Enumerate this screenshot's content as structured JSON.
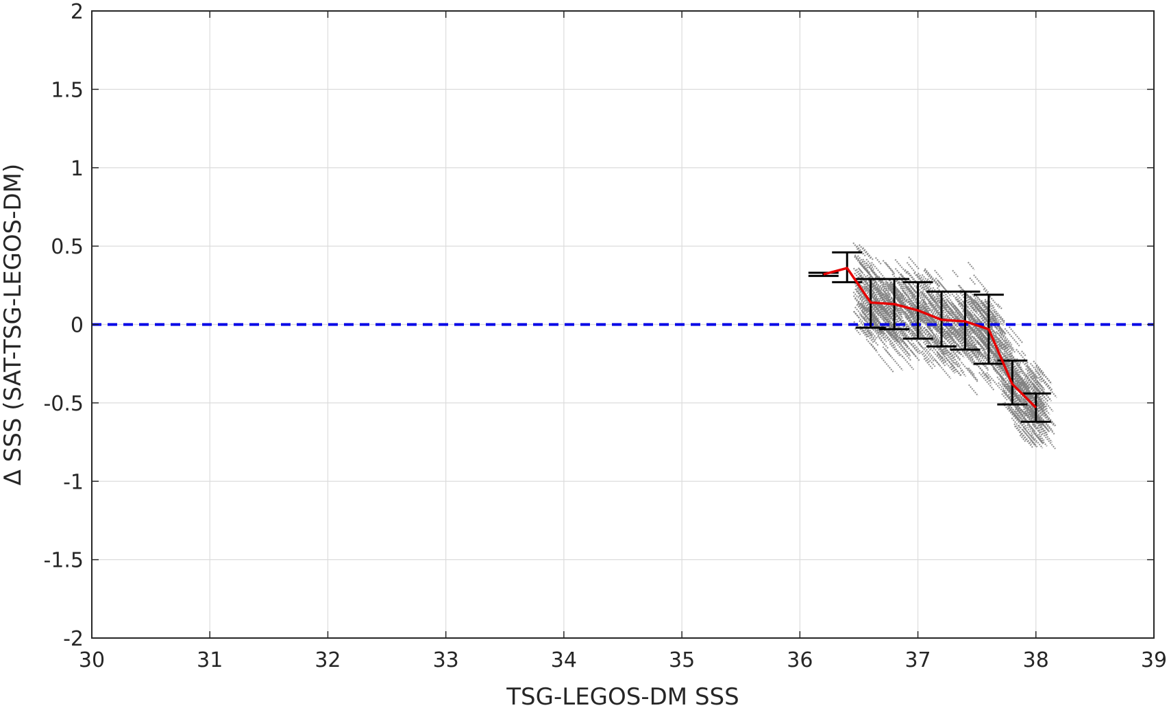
{
  "chart_data": {
    "type": "scatter",
    "title": "",
    "xlabel": "TSG-LEGOS-DM SSS",
    "ylabel": "Δ SSS (SAT-TSG-LEGOS-DM)",
    "xlim": [
      30,
      39
    ],
    "ylim": [
      -2,
      2
    ],
    "xticks": [
      30,
      31,
      32,
      33,
      34,
      35,
      36,
      37,
      38,
      39
    ],
    "xtick_labels": [
      "30",
      "31",
      "32",
      "33",
      "34",
      "35",
      "36",
      "37",
      "38",
      "39"
    ],
    "yticks": [
      2,
      1.5,
      1,
      0.5,
      0,
      -0.5,
      -1,
      -1.5,
      -2
    ],
    "ytick_labels": [
      "2",
      "1.5",
      "1",
      "0.5",
      "0",
      "-0.5",
      "-1",
      "-1.5",
      "-2"
    ],
    "grid": true,
    "legend": "none",
    "reference_line": {
      "y": 0,
      "style": "dashed",
      "color": "#0000e6"
    },
    "scatter_cloud": {
      "color": "#808080",
      "x_range": [
        36.4,
        38.1
      ],
      "y_range": [
        -0.8,
        0.75
      ],
      "description_trend": "negative slope"
    },
    "binned_mean": {
      "color": "#e60000",
      "x": [
        36.2,
        36.4,
        36.6,
        36.8,
        37.0,
        37.2,
        37.4,
        37.6,
        37.8,
        38.0
      ],
      "y": [
        0.32,
        0.36,
        0.14,
        0.13,
        0.09,
        0.03,
        0.02,
        -0.03,
        -0.38,
        -0.53
      ]
    },
    "error_bars": {
      "color": "#000000",
      "x": [
        36.2,
        36.4,
        36.6,
        36.8,
        37.0,
        37.2,
        37.4,
        37.6,
        37.8,
        38.0
      ],
      "lower": [
        0.31,
        0.27,
        -0.02,
        -0.03,
        -0.09,
        -0.14,
        -0.16,
        -0.25,
        -0.51,
        -0.62
      ],
      "upper": [
        0.33,
        0.46,
        0.29,
        0.29,
        0.27,
        0.21,
        0.21,
        0.19,
        -0.23,
        -0.44
      ]
    }
  }
}
